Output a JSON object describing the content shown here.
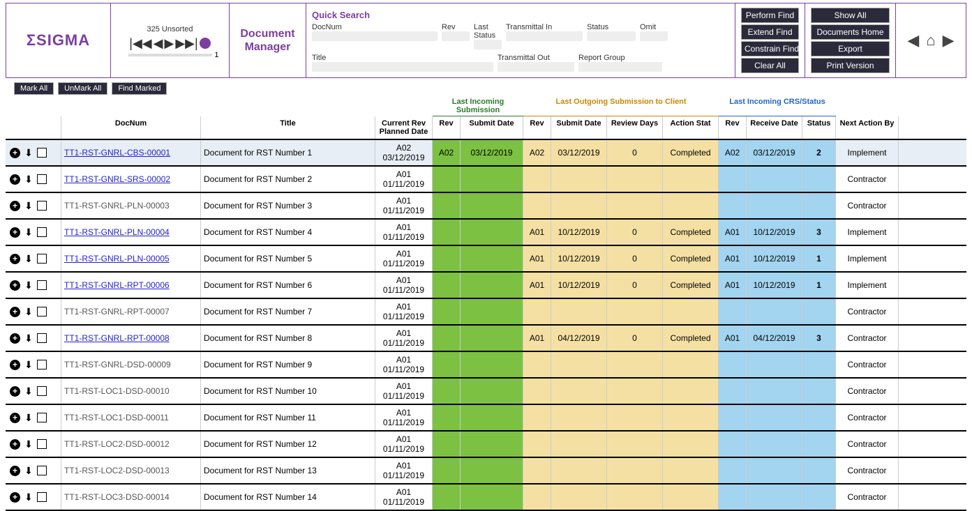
{
  "header": {
    "logo": "ΣSIGMA",
    "unsorted": "325 Unsorted",
    "slider_num": "1",
    "app_title_1": "Document",
    "app_title_2": "Manager",
    "search_title": "Quick Search",
    "labels": {
      "docnum": "DocNum",
      "rev": "Rev",
      "last_status": "Last Status",
      "trans_in": "Transmittal In",
      "status": "Status",
      "omit": "Omit",
      "title": "Title",
      "trans_out": "Transmittal Out",
      "report_group": "Report Group"
    },
    "buttons1": [
      "Perform Find",
      "Extend Find",
      "Constrain Find",
      "Clear All"
    ],
    "buttons2": [
      "Show All",
      "Documents Home",
      "Export",
      "Print Version"
    ]
  },
  "actions": [
    "Mark All",
    "UnMark All",
    "Find Marked"
  ],
  "group_headers": {
    "incoming": "Last Incoming Submission",
    "outgoing": "Last Outgoing Submission to Client",
    "crs": "Last Incoming CRS/Status"
  },
  "col_headers": {
    "docnum": "DocNum",
    "title": "Title",
    "cur": "Current Rev Planned Date",
    "rev": "Rev",
    "submit": "Submit Date",
    "review": "Review Days",
    "astat": "Action Stat",
    "recv": "Receive Date",
    "status": "Status",
    "next": "Next Action By"
  },
  "colors": {
    "green": "#7cc142",
    "yellow": "#f5e0a3",
    "blue": "#a3d4f0"
  },
  "rows": [
    {
      "sel": true,
      "link": true,
      "doc": "TT1-RST-GNRL-CBS-00001",
      "title": "Document for RST Number 1",
      "cur_rev": "A02",
      "cur_date": "03/12/2019",
      "i_rev": "A02",
      "i_sub": "03/12/2019",
      "o_rev": "A02",
      "o_sub": "03/12/2019",
      "o_days": "0",
      "o_stat": "Completed",
      "c_rev": "A02",
      "c_date": "03/12/2019",
      "c_stat": "2",
      "next": "Implement"
    },
    {
      "link": true,
      "doc": "TT1-RST-GNRL-SRS-00002",
      "title": "Document for RST Number 2",
      "cur_rev": "A01",
      "cur_date": "01/11/2019",
      "next": "Contractor"
    },
    {
      "link": false,
      "doc": "TT1-RST-GNRL-PLN-00003",
      "title": "Document for RST Number 3",
      "cur_rev": "A01",
      "cur_date": "01/11/2019",
      "next": "Contractor"
    },
    {
      "link": true,
      "doc": "TT1-RST-GNRL-PLN-00004",
      "title": "Document for RST Number 4",
      "cur_rev": "A01",
      "cur_date": "01/11/2019",
      "o_rev": "A01",
      "o_sub": "10/12/2019",
      "o_days": "0",
      "o_stat": "Completed",
      "c_rev": "A01",
      "c_date": "10/12/2019",
      "c_stat": "3",
      "next": "Implement"
    },
    {
      "link": true,
      "doc": "TT1-RST-GNRL-PLN-00005",
      "title": "Document for RST Number 5",
      "cur_rev": "A01",
      "cur_date": "01/11/2019",
      "o_rev": "A01",
      "o_sub": "10/12/2019",
      "o_days": "0",
      "o_stat": "Completed",
      "c_rev": "A01",
      "c_date": "10/12/2019",
      "c_stat": "1",
      "next": "Implement"
    },
    {
      "link": true,
      "doc": "TT1-RST-GNRL-RPT-00006",
      "title": "Document for RST Number 6",
      "cur_rev": "A01",
      "cur_date": "01/11/2019",
      "o_rev": "A01",
      "o_sub": "10/12/2019",
      "o_days": "0",
      "o_stat": "Completed",
      "c_rev": "A01",
      "c_date": "10/12/2019",
      "c_stat": "1",
      "next": "Implement"
    },
    {
      "link": false,
      "doc": "TT1-RST-GNRL-RPT-00007",
      "title": "Document for RST Number 7",
      "cur_rev": "A01",
      "cur_date": "01/11/2019",
      "next": "Contractor"
    },
    {
      "link": true,
      "doc": "TT1-RST-GNRL-RPT-00008",
      "title": "Document for RST Number 8",
      "cur_rev": "A01",
      "cur_date": "01/11/2019",
      "o_rev": "A01",
      "o_sub": "04/12/2019",
      "o_days": "0",
      "o_stat": "Completed",
      "c_rev": "A01",
      "c_date": "04/12/2019",
      "c_stat": "3",
      "next": "Contractor"
    },
    {
      "link": false,
      "doc": "TT1-RST-GNRL-DSD-00009",
      "title": "Document for RST Number 9",
      "cur_rev": "A01",
      "cur_date": "01/11/2019",
      "next": "Contractor"
    },
    {
      "link": false,
      "doc": "TT1-RST-LOC1-DSD-00010",
      "title": "Document for RST Number 10",
      "cur_rev": "A01",
      "cur_date": "01/11/2019",
      "next": "Contractor"
    },
    {
      "link": false,
      "doc": "TT1-RST-LOC1-DSD-00011",
      "title": "Document for RST Number 11",
      "cur_rev": "A01",
      "cur_date": "01/11/2019",
      "next": "Contractor"
    },
    {
      "link": false,
      "doc": "TT1-RST-LOC2-DSD-00012",
      "title": "Document for RST Number 12",
      "cur_rev": "A01",
      "cur_date": "01/11/2019",
      "next": "Contractor"
    },
    {
      "link": false,
      "doc": "TT1-RST-LOC2-DSD-00013",
      "title": "Document for RST Number 13",
      "cur_rev": "A01",
      "cur_date": "01/11/2019",
      "next": "Contractor"
    },
    {
      "link": false,
      "doc": "TT1-RST-LOC3-DSD-00014",
      "title": "Document for RST Number 14",
      "cur_rev": "A01",
      "cur_date": "01/11/2019",
      "next": "Contractor"
    }
  ]
}
